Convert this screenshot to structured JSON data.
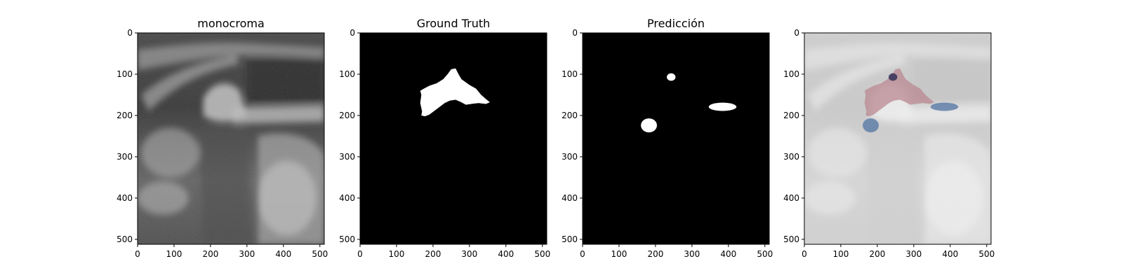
{
  "panels": [
    {
      "title": "monocroma",
      "kind": "ultrasound"
    },
    {
      "title": "Ground Truth",
      "kind": "mask_gt"
    },
    {
      "title": "Predicción",
      "kind": "mask_pred"
    },
    {
      "title": "",
      "kind": "overlay"
    }
  ],
  "axes": {
    "image_size": 512,
    "x_ticks": [
      "0",
      "100",
      "200",
      "300",
      "400",
      "500"
    ],
    "y_ticks": [
      "0",
      "100",
      "200",
      "300",
      "400",
      "500"
    ],
    "tick_values": [
      0,
      100,
      200,
      300,
      400,
      500
    ]
  },
  "masks": {
    "ground_truth": [
      [
        165,
        140
      ],
      [
        175,
        135
      ],
      [
        190,
        128
      ],
      [
        210,
        122
      ],
      [
        228,
        112
      ],
      [
        240,
        100
      ],
      [
        250,
        88
      ],
      [
        262,
        86
      ],
      [
        270,
        100
      ],
      [
        278,
        112
      ],
      [
        300,
        126
      ],
      [
        318,
        135
      ],
      [
        332,
        150
      ],
      [
        345,
        160
      ],
      [
        356,
        168
      ],
      [
        345,
        172
      ],
      [
        325,
        170
      ],
      [
        305,
        172
      ],
      [
        290,
        174
      ],
      [
        278,
        168
      ],
      [
        262,
        162
      ],
      [
        246,
        164
      ],
      [
        232,
        170
      ],
      [
        220,
        178
      ],
      [
        205,
        188
      ],
      [
        190,
        198
      ],
      [
        178,
        202
      ],
      [
        168,
        200
      ],
      [
        170,
        190
      ],
      [
        165,
        170
      ],
      [
        168,
        150
      ]
    ],
    "predictions": [
      {
        "cx": 243,
        "cy": 107,
        "rx": 12,
        "ry": 9
      },
      {
        "cx": 182,
        "cy": 224,
        "rx": 22,
        "ry": 17
      },
      {
        "cx": 384,
        "cy": 179,
        "rx": 38,
        "ry": 10
      }
    ]
  },
  "colors": {
    "mask": "#ffffff",
    "background": "#000000",
    "overlay_gt": "#b98a92",
    "overlay_pred": "#5a7aa8",
    "overlay_both": "#2a2a55"
  }
}
